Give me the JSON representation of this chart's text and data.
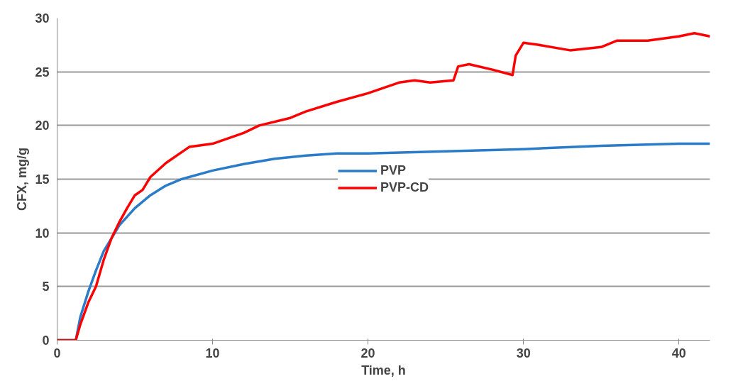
{
  "chart_data": {
    "type": "line",
    "xlabel": "Time, h",
    "ylabel": "CFX, mg/g",
    "xlim": [
      0,
      42
    ],
    "ylim": [
      0,
      30
    ],
    "xticks": [
      0,
      10,
      20,
      30,
      40
    ],
    "yticks": [
      0,
      5,
      10,
      15,
      20,
      25,
      30
    ],
    "grid": "y",
    "legend": "center",
    "marker": "none",
    "line_style": "solid",
    "series": [
      {
        "name": "PVP",
        "color": "#2a7bc8",
        "x": [
          0,
          1.2,
          1.5,
          2,
          2.5,
          3,
          4,
          5,
          6,
          7,
          8,
          10,
          12,
          14,
          16,
          18,
          20,
          25,
          30,
          35,
          40,
          42
        ],
        "values": [
          0,
          0,
          2.2,
          4.5,
          6.5,
          8.3,
          10.7,
          12.3,
          13.5,
          14.4,
          15,
          15.8,
          16.4,
          16.9,
          17.2,
          17.4,
          17.4,
          17.6,
          17.8,
          18.1,
          18.3,
          18.3
        ]
      },
      {
        "name": "PVP-CD",
        "color": "#ff0000",
        "x": [
          0,
          1.2,
          1.5,
          2,
          2.5,
          3,
          3.5,
          4,
          4.5,
          5,
          5.5,
          6,
          7,
          8,
          8.5,
          10,
          12,
          13,
          15,
          16,
          18,
          20,
          22,
          23,
          24,
          25.5,
          25.8,
          26.5,
          28,
          29.3,
          29.5,
          30,
          31,
          33,
          35,
          36,
          38,
          40,
          41,
          42
        ],
        "values": [
          0,
          0,
          1.5,
          3.5,
          5,
          7.5,
          9.5,
          11,
          12.3,
          13.5,
          14,
          15.2,
          16.5,
          17.5,
          18,
          18.3,
          19.3,
          20,
          20.7,
          21.3,
          22.2,
          23,
          24,
          24.2,
          24,
          24.2,
          25.5,
          25.7,
          25.2,
          24.7,
          26.5,
          27.7,
          27.5,
          27,
          27.3,
          27.9,
          27.9,
          28.3,
          28.6,
          28.3
        ]
      }
    ]
  }
}
